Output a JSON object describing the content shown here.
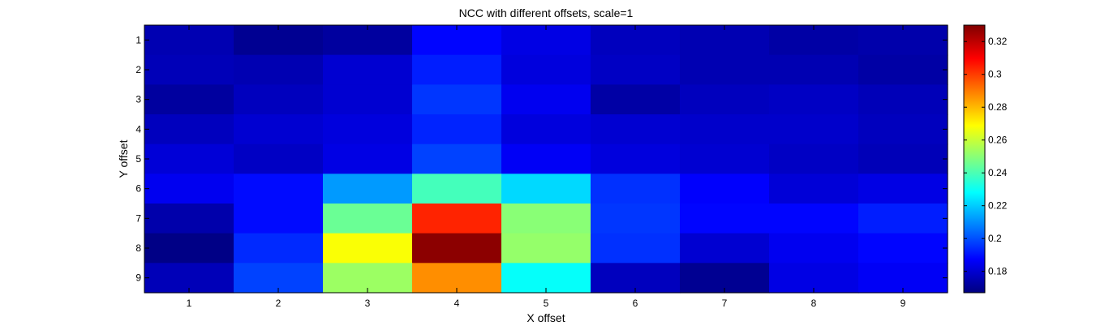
{
  "chart_data": {
    "type": "heatmap",
    "title": "NCC with different offsets, scale=1",
    "xlabel": "X offset",
    "ylabel": "Y offset",
    "x_categories": [
      "1",
      "2",
      "3",
      "4",
      "5",
      "6",
      "7",
      "8",
      "9"
    ],
    "y_categories": [
      "1",
      "2",
      "3",
      "4",
      "5",
      "6",
      "7",
      "8",
      "9"
    ],
    "colormap": "jet",
    "clim": [
      0.167,
      0.33
    ],
    "colorbar": {
      "ticks": [
        0.18,
        0.2,
        0.22,
        0.24,
        0.26,
        0.28,
        0.3,
        0.32
      ],
      "tick_labels": [
        "0.18",
        "0.2",
        "0.22",
        "0.24",
        "0.26",
        "0.28",
        "0.3",
        "0.32"
      ]
    },
    "values": [
      [
        0.175,
        0.17,
        0.172,
        0.188,
        0.183,
        0.177,
        0.175,
        0.173,
        0.174
      ],
      [
        0.176,
        0.175,
        0.18,
        0.192,
        0.182,
        0.178,
        0.175,
        0.175,
        0.173
      ],
      [
        0.172,
        0.177,
        0.18,
        0.196,
        0.185,
        0.173,
        0.177,
        0.178,
        0.176
      ],
      [
        0.177,
        0.18,
        0.182,
        0.193,
        0.182,
        0.18,
        0.179,
        0.179,
        0.177
      ],
      [
        0.181,
        0.178,
        0.183,
        0.198,
        0.186,
        0.182,
        0.18,
        0.178,
        0.176
      ],
      [
        0.185,
        0.189,
        0.212,
        0.239,
        0.222,
        0.195,
        0.187,
        0.181,
        0.183
      ],
      [
        0.174,
        0.189,
        0.245,
        0.304,
        0.25,
        0.196,
        0.188,
        0.188,
        0.192
      ],
      [
        0.168,
        0.194,
        0.268,
        0.328,
        0.252,
        0.195,
        0.18,
        0.185,
        0.188
      ],
      [
        0.176,
        0.198,
        0.253,
        0.287,
        0.229,
        0.177,
        0.17,
        0.183,
        0.186
      ]
    ]
  }
}
